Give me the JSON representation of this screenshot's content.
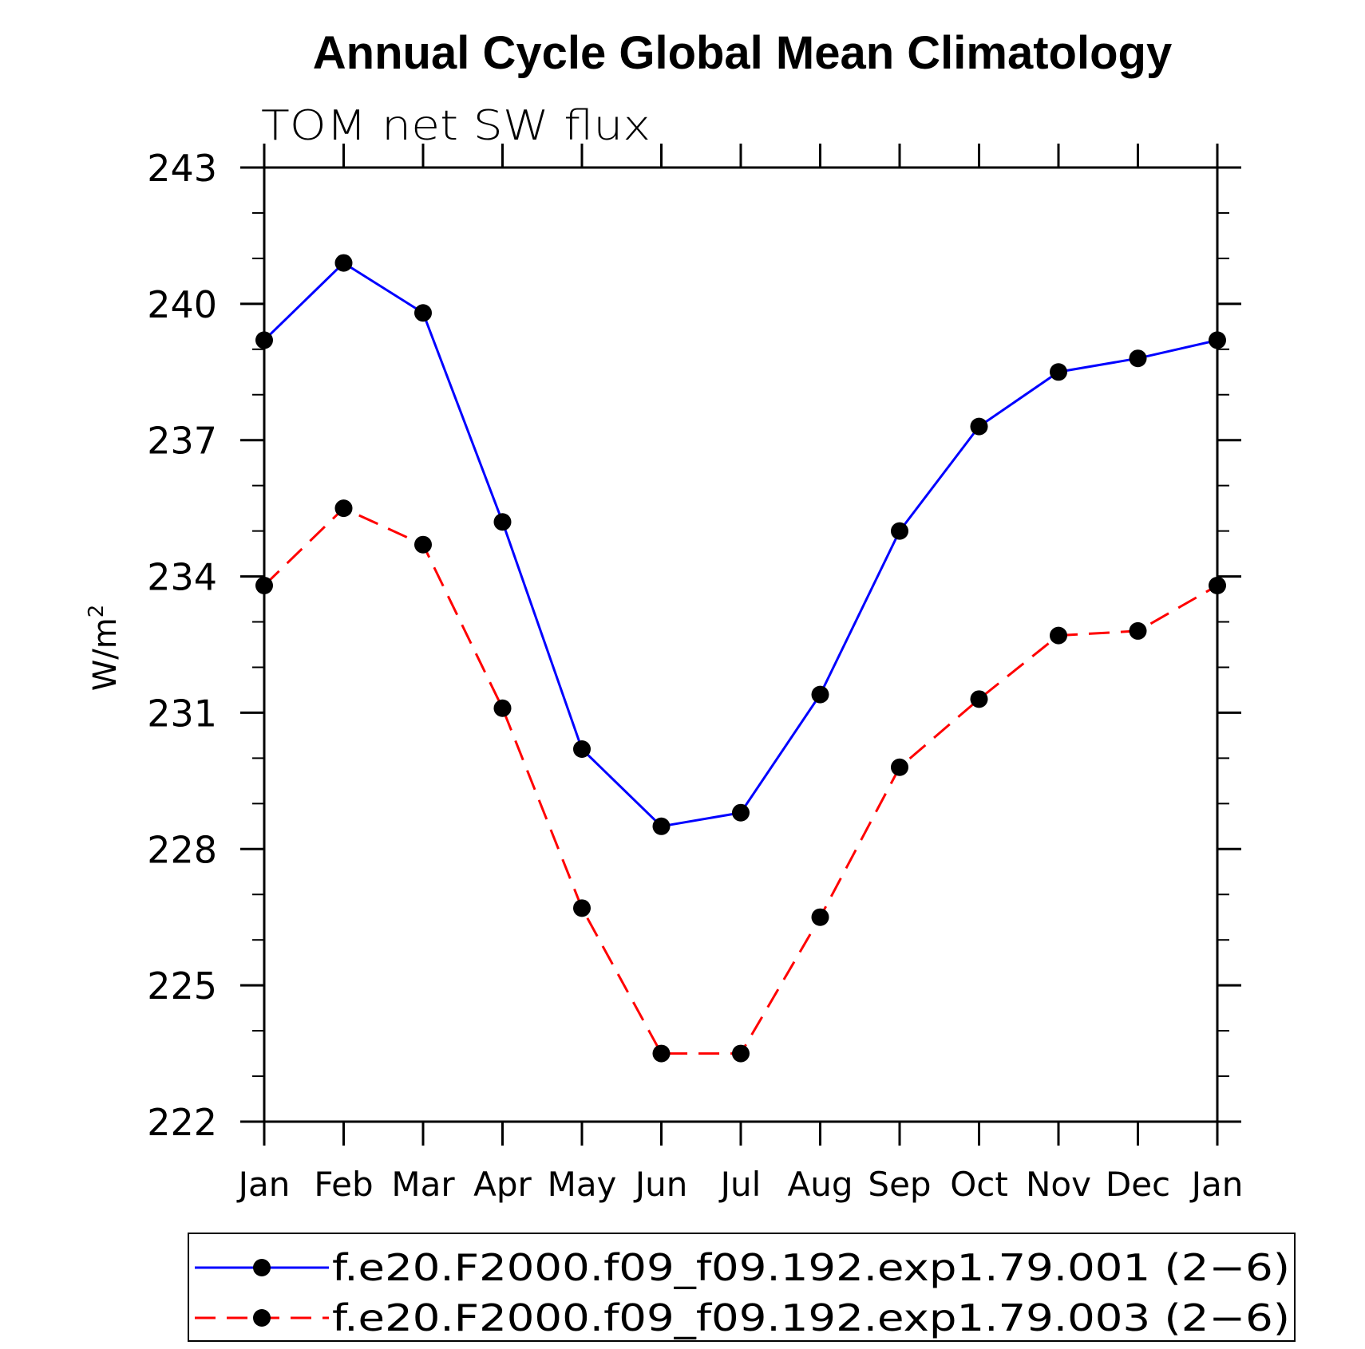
{
  "chart_data": {
    "type": "line",
    "title": "Annual Cycle Global Mean Climatology",
    "subtitle": "TOM net SW flux",
    "xlabel": "",
    "ylabel": "W/m",
    "ylabel_superscript": "2",
    "categories": [
      "Jan",
      "Feb",
      "Mar",
      "Apr",
      "May",
      "Jun",
      "Jul",
      "Aug",
      "Sep",
      "Oct",
      "Nov",
      "Dec",
      "Jan"
    ],
    "ylim": [
      222,
      243
    ],
    "yticks": [
      222,
      225,
      228,
      231,
      234,
      237,
      240,
      243
    ],
    "y_minor_step": 1,
    "legend_position": "bottom",
    "series": [
      {
        "name": "f.e20.F2000.f09_f09.192.exp1.79.001 (2−6)",
        "color": "#0000ff",
        "dash": "solid",
        "marker": "filled-circle",
        "values": [
          239.2,
          240.9,
          239.8,
          235.2,
          230.2,
          228.5,
          228.8,
          231.4,
          235.0,
          237.3,
          238.5,
          238.8,
          239.2
        ]
      },
      {
        "name": "f.e20.F2000.f09_f09.192.exp1.79.003 (2−6)",
        "color": "#ff0000",
        "dash": "dashed",
        "marker": "filled-circle",
        "values": [
          233.8,
          235.5,
          234.7,
          231.1,
          226.7,
          223.5,
          223.5,
          226.5,
          229.8,
          231.3,
          232.7,
          232.8,
          233.8
        ]
      }
    ]
  }
}
